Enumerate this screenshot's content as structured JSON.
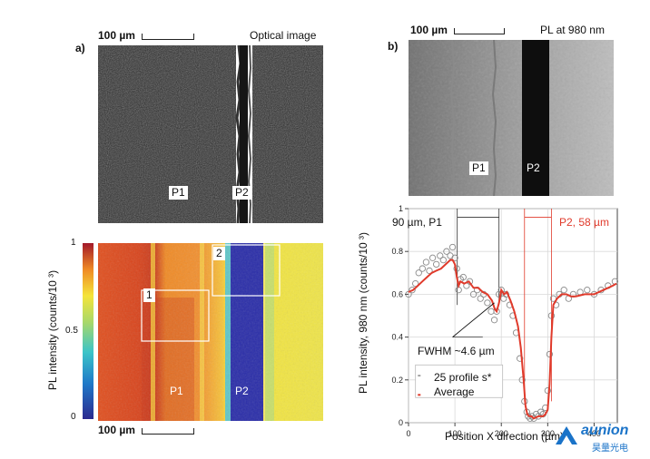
{
  "panel_a": {
    "label": "a)",
    "scale_text": "100 µm",
    "optical_title": "Optical image",
    "optical_tags": [
      "P1",
      "P2"
    ],
    "colorbar_ticks": [
      "1",
      "0.5",
      "0"
    ],
    "colorbar_label": "PL intensity (counts/10 ³)",
    "map_boxes": [
      "1",
      "2"
    ],
    "map_tags": [
      "P1",
      "P2"
    ],
    "map_scale_text": "100 µm"
  },
  "panel_b": {
    "label": "b)",
    "scale_text": "100 µm",
    "pl_title": "PL at 980 nm",
    "image_tags": [
      "P1",
      "P2"
    ],
    "annot_left": "90 µm, P1",
    "annot_right": "P2, 58 µm",
    "fwhm": "FWHM ~4.6 µm",
    "legend": [
      "25 profile s*",
      "Average"
    ]
  },
  "chart_data": {
    "type": "scatter",
    "xlabel": "Position X direction (µm)",
    "ylabel": "PL intensity, 980 nm (counts/10 ³)",
    "xlim": [
      0,
      450
    ],
    "ylim": [
      0,
      1
    ],
    "xticks": [
      0,
      100,
      200,
      300,
      400
    ],
    "yticks": [
      0,
      0.2,
      0.4,
      0.6,
      0.8,
      1
    ],
    "grid": true,
    "legend_position": "bottom-left",
    "series": [
      {
        "name": "25 profile s*",
        "marker": "open-circle",
        "color": "#8a8a8a",
        "x": [
          0,
          8,
          15,
          22,
          30,
          38,
          45,
          52,
          60,
          68,
          75,
          82,
          90,
          95,
          100,
          104,
          108,
          112,
          118,
          125,
          132,
          140,
          148,
          155,
          162,
          170,
          178,
          185,
          190,
          195,
          200,
          205,
          210,
          218,
          225,
          232,
          240,
          245,
          250,
          255,
          258,
          262,
          266,
          270,
          275,
          280,
          285,
          290,
          295,
          300,
          304,
          308,
          312,
          318,
          325,
          335,
          345,
          355,
          370,
          385,
          400,
          415,
          430,
          445
        ],
        "y": [
          0.6,
          0.62,
          0.65,
          0.7,
          0.72,
          0.75,
          0.71,
          0.77,
          0.74,
          0.78,
          0.76,
          0.8,
          0.78,
          0.82,
          0.77,
          0.72,
          0.62,
          0.67,
          0.68,
          0.64,
          0.66,
          0.6,
          0.62,
          0.58,
          0.6,
          0.56,
          0.52,
          0.48,
          0.52,
          0.6,
          0.62,
          0.58,
          0.6,
          0.55,
          0.5,
          0.42,
          0.3,
          0.2,
          0.1,
          0.05,
          0.03,
          0.02,
          0.03,
          0.02,
          0.04,
          0.03,
          0.05,
          0.04,
          0.07,
          0.15,
          0.32,
          0.5,
          0.58,
          0.55,
          0.6,
          0.62,
          0.58,
          0.6,
          0.61,
          0.62,
          0.6,
          0.62,
          0.64,
          0.66
        ]
      },
      {
        "name": "Average",
        "color": "#e03a2b",
        "x": [
          0,
          10,
          20,
          30,
          40,
          50,
          60,
          70,
          80,
          90,
          95,
          100,
          104,
          108,
          112,
          120,
          130,
          140,
          150,
          160,
          170,
          180,
          186,
          190,
          195,
          200,
          206,
          212,
          220,
          228,
          236,
          242,
          248,
          252,
          256,
          260,
          265,
          270,
          280,
          290,
          295,
          300,
          304,
          308,
          312,
          320,
          330,
          340,
          350,
          360,
          380,
          400,
          420,
          440,
          448
        ],
        "y": [
          0.61,
          0.62,
          0.64,
          0.66,
          0.68,
          0.7,
          0.71,
          0.72,
          0.74,
          0.76,
          0.76,
          0.74,
          0.68,
          0.64,
          0.66,
          0.65,
          0.66,
          0.63,
          0.63,
          0.61,
          0.6,
          0.57,
          0.53,
          0.52,
          0.56,
          0.62,
          0.6,
          0.61,
          0.57,
          0.52,
          0.45,
          0.35,
          0.2,
          0.08,
          0.04,
          0.03,
          0.03,
          0.02,
          0.03,
          0.03,
          0.04,
          0.06,
          0.18,
          0.4,
          0.55,
          0.58,
          0.6,
          0.6,
          0.59,
          0.59,
          0.6,
          0.6,
          0.62,
          0.64,
          0.65
        ]
      }
    ]
  },
  "watermark": {
    "brand": "aunion",
    "subtext": "昊量光电"
  }
}
